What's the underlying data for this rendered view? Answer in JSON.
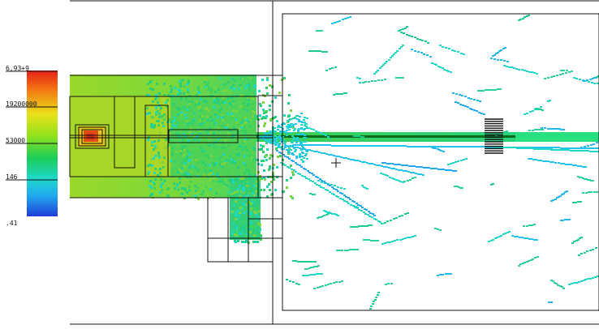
{
  "colorbar": {
    "labels": [
      "6,93+9",
      "19200000",
      "53000",
      "146",
      ".41"
    ],
    "colors": [
      "#e8201a",
      "#f27c12",
      "#e9e21a",
      "#8fe21c",
      "#1ccc58",
      "#1fd8c8",
      "#22a8ee",
      "#1f3ed8"
    ]
  },
  "plot": {
    "outline_color": "#111111",
    "beam_dark": "#0a6a1a",
    "hotspot_color": "#d42a18"
  }
}
